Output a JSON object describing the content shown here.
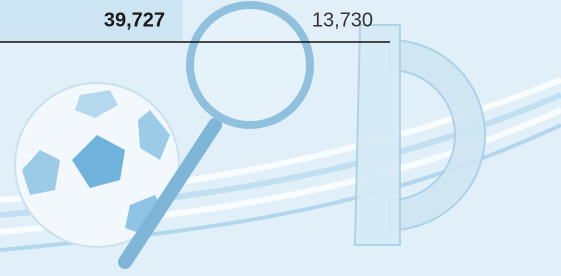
{
  "table": {
    "rows": [
      [
        "39,727",
        "13,730"
      ]
    ]
  }
}
